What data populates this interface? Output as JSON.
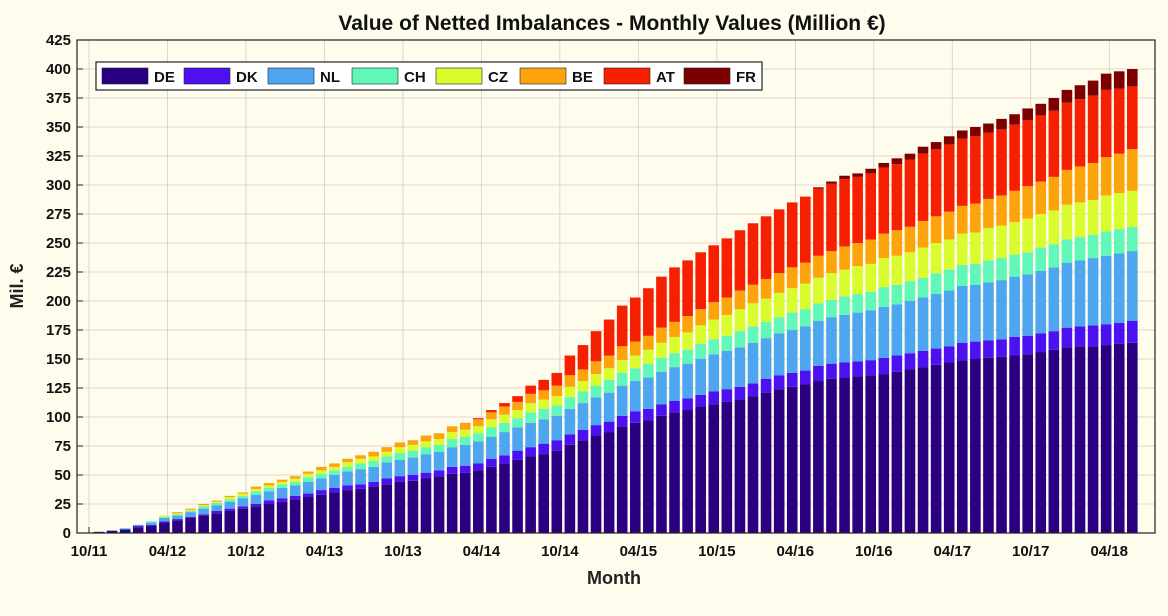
{
  "chart_data": {
    "type": "bar",
    "stacked": true,
    "title": "Value of Netted Imbalances - Monthly Values  (Million €)",
    "xlabel": "Month",
    "ylabel": "Mil. €",
    "ylim": [
      0,
      425
    ],
    "yticks": [
      0,
      25,
      50,
      75,
      100,
      125,
      150,
      175,
      200,
      225,
      250,
      275,
      300,
      325,
      350,
      375,
      400,
      425
    ],
    "x_tick_labels": [
      "10/11",
      "04/12",
      "10/12",
      "04/13",
      "10/13",
      "04/14",
      "10/14",
      "04/15",
      "10/15",
      "04/16",
      "10/16",
      "04/17",
      "10/17",
      "04/18"
    ],
    "categories": [
      "11/11",
      "12/11",
      "01/12",
      "02/12",
      "03/12",
      "04/12",
      "05/12",
      "06/12",
      "07/12",
      "08/12",
      "09/12",
      "10/12",
      "11/12",
      "12/12",
      "01/13",
      "02/13",
      "03/13",
      "04/13",
      "05/13",
      "06/13",
      "07/13",
      "08/13",
      "09/13",
      "10/13",
      "11/13",
      "12/13",
      "01/14",
      "02/14",
      "03/14",
      "04/14",
      "05/14",
      "06/14",
      "07/14",
      "08/14",
      "09/14",
      "10/14",
      "11/14",
      "12/14",
      "01/15",
      "02/15",
      "03/15",
      "04/15",
      "05/15",
      "06/15",
      "07/15",
      "08/15",
      "09/15",
      "10/15",
      "11/15",
      "12/15",
      "01/16",
      "02/16",
      "03/16",
      "04/16",
      "05/16",
      "06/16",
      "07/16",
      "08/16",
      "09/16",
      "10/16",
      "11/16",
      "12/16",
      "01/17",
      "02/17",
      "03/17",
      "04/17",
      "05/17",
      "06/17",
      "07/17",
      "08/17",
      "09/17",
      "10/17",
      "11/17",
      "12/17",
      "01/18",
      "02/18",
      "03/18",
      "04/18",
      "05/18",
      "06/18"
    ],
    "grid": true,
    "legend_position": "top-left",
    "series": [
      {
        "name": "DE",
        "color": "#2a0080",
        "values": [
          1,
          2,
          3,
          5,
          6,
          9,
          11,
          13,
          15,
          17,
          19,
          21,
          23,
          25,
          27,
          29,
          31,
          33,
          35,
          37,
          38,
          40,
          42,
          44,
          45,
          47,
          49,
          51,
          52,
          54,
          57,
          60,
          63,
          66,
          68,
          71,
          76,
          80,
          84,
          87,
          92,
          95,
          97,
          101,
          104,
          106,
          109,
          111,
          113,
          115,
          118,
          121,
          124,
          126,
          128,
          131,
          133,
          134,
          135,
          136,
          137,
          139,
          141,
          143,
          145,
          147,
          149,
          150,
          151,
          152,
          153,
          154,
          156,
          158,
          160,
          161,
          161,
          162,
          163,
          164
        ]
      },
      {
        "name": "DK",
        "color": "#4d10f0",
        "values": [
          0,
          0,
          0,
          1,
          1,
          1,
          1,
          1,
          1,
          2,
          2,
          2,
          2,
          3,
          3,
          3,
          3,
          4,
          4,
          4,
          4,
          4,
          5,
          5,
          5,
          5,
          5,
          6,
          6,
          6,
          7,
          7,
          8,
          8,
          9,
          9,
          9,
          9,
          9,
          9,
          9,
          10,
          10,
          10,
          10,
          10,
          10,
          11,
          11,
          11,
          11,
          12,
          12,
          12,
          12,
          13,
          13,
          13,
          13,
          13,
          14,
          14,
          14,
          14,
          14,
          14,
          15,
          15,
          15,
          15,
          16,
          16,
          16,
          16,
          17,
          17,
          18,
          18,
          18,
          19
        ]
      },
      {
        "name": "NL",
        "color": "#4da6ef",
        "values": [
          0,
          0,
          1,
          1,
          2,
          3,
          3,
          4,
          5,
          5,
          6,
          7,
          8,
          8,
          9,
          9,
          10,
          10,
          11,
          12,
          13,
          13,
          14,
          14,
          15,
          16,
          16,
          17,
          18,
          19,
          19,
          20,
          20,
          21,
          21,
          21,
          22,
          23,
          24,
          25,
          26,
          26,
          27,
          28,
          29,
          30,
          31,
          32,
          33,
          34,
          35,
          35,
          36,
          37,
          38,
          39,
          40,
          41,
          42,
          43,
          44,
          44,
          45,
          46,
          47,
          48,
          49,
          49,
          50,
          51,
          52,
          53,
          54,
          55,
          56,
          57,
          58,
          59,
          60,
          60
        ]
      },
      {
        "name": "CH",
        "color": "#60f7b8",
        "values": [
          0,
          0,
          0,
          0,
          1,
          1,
          1,
          1,
          2,
          2,
          2,
          2,
          3,
          3,
          3,
          3,
          4,
          4,
          4,
          4,
          5,
          5,
          5,
          6,
          6,
          6,
          6,
          7,
          7,
          7,
          8,
          8,
          8,
          9,
          9,
          9,
          10,
          10,
          10,
          11,
          11,
          11,
          12,
          12,
          12,
          12,
          13,
          13,
          13,
          14,
          14,
          14,
          14,
          15,
          15,
          15,
          15,
          16,
          16,
          16,
          17,
          17,
          17,
          17,
          18,
          18,
          18,
          18,
          19,
          19,
          19,
          19,
          20,
          20,
          20,
          20,
          20,
          21,
          21,
          21
        ]
      },
      {
        "name": "CZ",
        "color": "#d8fc2e",
        "values": [
          0,
          0,
          0,
          0,
          0,
          1,
          1,
          1,
          1,
          1,
          2,
          2,
          2,
          2,
          2,
          3,
          3,
          3,
          3,
          4,
          4,
          4,
          4,
          5,
          5,
          5,
          5,
          6,
          6,
          6,
          7,
          7,
          7,
          8,
          8,
          8,
          9,
          9,
          10,
          10,
          11,
          11,
          12,
          13,
          14,
          15,
          16,
          17,
          18,
          19,
          20,
          20,
          21,
          21,
          22,
          22,
          23,
          23,
          24,
          24,
          25,
          25,
          25,
          26,
          26,
          26,
          27,
          27,
          28,
          28,
          28,
          29,
          29,
          29,
          30,
          30,
          30,
          31,
          31,
          31
        ]
      },
      {
        "name": "BE",
        "color": "#fda40d",
        "values": [
          0,
          0,
          0,
          0,
          0,
          0,
          1,
          1,
          1,
          1,
          1,
          1,
          2,
          2,
          2,
          2,
          2,
          3,
          3,
          3,
          3,
          4,
          4,
          4,
          4,
          5,
          5,
          5,
          6,
          6,
          6,
          7,
          7,
          8,
          8,
          9,
          10,
          10,
          11,
          11,
          12,
          12,
          12,
          13,
          13,
          14,
          14,
          15,
          15,
          16,
          16,
          17,
          17,
          18,
          18,
          19,
          19,
          20,
          20,
          21,
          21,
          22,
          22,
          23,
          23,
          24,
          24,
          25,
          25,
          26,
          27,
          28,
          28,
          29,
          30,
          31,
          32,
          33,
          34,
          36
        ]
      },
      {
        "name": "AT",
        "color": "#f62000",
        "values": [
          0,
          0,
          0,
          0,
          0,
          0,
          0,
          0,
          0,
          0,
          0,
          0,
          0,
          0,
          0,
          0,
          0,
          0,
          0,
          0,
          0,
          0,
          0,
          0,
          0,
          0,
          0,
          0,
          0,
          1,
          2,
          3,
          5,
          7,
          9,
          11,
          17,
          21,
          26,
          31,
          35,
          38,
          41,
          44,
          47,
          48,
          49,
          49,
          51,
          52,
          53,
          54,
          55,
          56,
          57,
          58,
          58,
          58,
          57,
          57,
          57,
          57,
          58,
          58,
          58,
          58,
          58,
          58,
          57,
          57,
          57,
          57,
          57,
          57,
          58,
          58,
          58,
          58,
          56,
          54
        ]
      },
      {
        "name": "FR",
        "color": "#7d0000",
        "values": [
          0,
          0,
          0,
          0,
          0,
          0,
          0,
          0,
          0,
          0,
          0,
          0,
          0,
          0,
          0,
          0,
          0,
          0,
          0,
          0,
          0,
          0,
          0,
          0,
          0,
          0,
          0,
          0,
          0,
          0,
          0,
          0,
          0,
          0,
          0,
          0,
          0,
          0,
          0,
          0,
          0,
          0,
          0,
          0,
          0,
          0,
          0,
          0,
          0,
          0,
          0,
          0,
          0,
          0,
          0,
          1,
          2,
          3,
          3,
          4,
          4,
          5,
          5,
          6,
          6,
          7,
          7,
          8,
          8,
          9,
          9,
          10,
          10,
          11,
          11,
          12,
          13,
          14,
          15,
          15
        ]
      }
    ]
  }
}
